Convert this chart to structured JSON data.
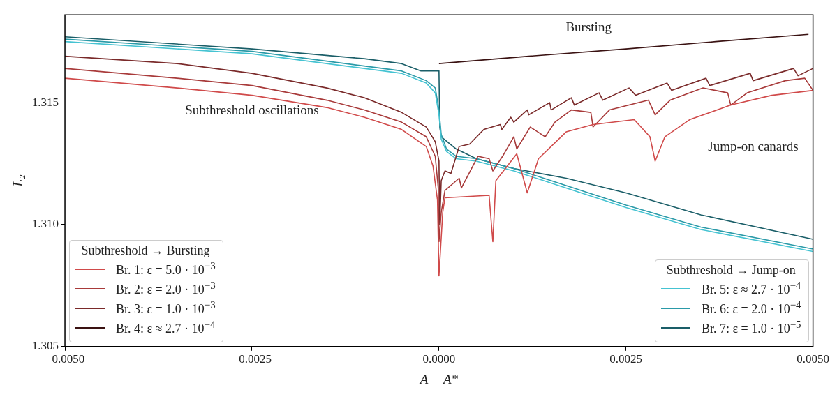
{
  "chart_data": {
    "type": "line",
    "xlabel": "A − A*",
    "ylabel": "L₂",
    "xlim": [
      -0.005,
      0.005
    ],
    "ylim": [
      1.305,
      1.3186
    ],
    "xticks": [
      {
        "value": -0.005,
        "label": "−0.0050"
      },
      {
        "value": -0.0025,
        "label": "−0.0025"
      },
      {
        "value": 0,
        "label": "0.0000"
      },
      {
        "value": 0.0025,
        "label": "0.0025"
      },
      {
        "value": 0.005,
        "label": "0.0050"
      }
    ],
    "yticks": [
      {
        "value": 1.305,
        "label": "1.305"
      },
      {
        "value": 1.31,
        "label": "1.310"
      },
      {
        "value": 1.315,
        "label": "1.315"
      }
    ],
    "grid": false,
    "legend": "bottom left",
    "legend_title": "Subthreshold → Bursting",
    "marker": "none",
    "line_style": "solid",
    "annotations": [
      "Bursting",
      "Subthreshold oscillations",
      "Jump-on canards",
      "Subthreshold → Jump-on"
    ],
    "series": [
      {
        "name": "Br. 1: ε = 5.0 · 10$^{−3}$",
        "color": "#d04a4a",
        "x": [
          -0.005,
          -0.0035,
          -0.0025,
          -0.0015,
          -0.001,
          -0.0005,
          -0.00017,
          -8e-05,
          -2e-05,
          0,
          5e-05,
          8e-05,
          0.00067,
          0.00072,
          0.00076,
          0.00104,
          0.00118,
          0.00133,
          0.0017,
          0.00206,
          0.00261,
          0.00282,
          0.00289,
          0.00302,
          0.00335,
          0.0039,
          0.00445,
          0.005
        ],
        "values": [
          1.316,
          1.3156,
          1.3153,
          1.3148,
          1.3144,
          1.3139,
          1.3132,
          1.3124,
          1.311,
          1.3079,
          1.3105,
          1.3111,
          1.3112,
          1.3093,
          1.3118,
          1.3129,
          1.3113,
          1.3127,
          1.3138,
          1.3141,
          1.3143,
          1.3136,
          1.3126,
          1.3136,
          1.3143,
          1.3149,
          1.3153,
          1.3155
        ]
      },
      {
        "name": "Br. 2: ε = 2.0 · 10$^{−3}$",
        "color": "#a83a3a",
        "x": [
          -0.005,
          -0.0035,
          -0.0025,
          -0.0015,
          -0.001,
          -0.0005,
          -0.00017,
          -5e-05,
          -1e-05,
          0,
          3e-05,
          8e-05,
          0.00027,
          0.0003,
          0.00052,
          0.00067,
          0.00072,
          0.00085,
          0.001,
          0.00104,
          0.00122,
          0.00142,
          0.00155,
          0.00177,
          0.00203,
          0.00206,
          0.00228,
          0.0028,
          0.00289,
          0.00309,
          0.00353,
          0.00386,
          0.0039,
          0.00412,
          0.00463,
          0.00489,
          0.005
        ],
        "values": [
          1.3164,
          1.316,
          1.3157,
          1.3151,
          1.3147,
          1.3142,
          1.3136,
          1.3128,
          1.3115,
          1.3093,
          1.3105,
          1.3114,
          1.3119,
          1.3115,
          1.3128,
          1.3127,
          1.3122,
          1.3128,
          1.3136,
          1.3131,
          1.314,
          1.3136,
          1.3142,
          1.3147,
          1.3146,
          1.314,
          1.3147,
          1.3151,
          1.3145,
          1.3151,
          1.3156,
          1.3154,
          1.3149,
          1.3154,
          1.3159,
          1.316,
          1.3155
        ]
      },
      {
        "name": "Br. 3: ε = 1.0 · 10$^{−3}$",
        "color": "#7a2a2a",
        "x": [
          -0.005,
          -0.0035,
          -0.0025,
          -0.0015,
          -0.001,
          -0.0005,
          -0.00017,
          -5e-05,
          0,
          1e-05,
          3e-05,
          8e-05,
          0.00016,
          0.00027,
          0.00041,
          0.0006,
          0.00082,
          0.00084,
          0.00096,
          0.001,
          0.00118,
          0.0012,
          0.00148,
          0.0015,
          0.00177,
          0.00181,
          0.00214,
          0.00219,
          0.00254,
          0.00263,
          0.00305,
          0.00311,
          0.00357,
          0.00362,
          0.00416,
          0.0042,
          0.00474,
          0.0048,
          0.005
        ],
        "values": [
          1.3169,
          1.3166,
          1.3162,
          1.3156,
          1.3152,
          1.3146,
          1.314,
          1.3134,
          1.3126,
          1.31,
          1.3118,
          1.3122,
          1.3121,
          1.3132,
          1.3133,
          1.3139,
          1.3141,
          1.3139,
          1.3144,
          1.3142,
          1.3147,
          1.3145,
          1.315,
          1.3147,
          1.3152,
          1.3149,
          1.3154,
          1.3151,
          1.3156,
          1.3153,
          1.3158,
          1.3155,
          1.316,
          1.3157,
          1.3162,
          1.3159,
          1.3164,
          1.3161,
          1.3164
        ]
      },
      {
        "name": "Br. 4: ε ≈ 2.7 · 10$^{−4}$",
        "color": "#3a1212",
        "x": [
          0,
          0.0012,
          0.0025,
          0.0037,
          0.00494
        ],
        "values": [
          1.3166,
          1.3169,
          1.3172,
          1.3175,
          1.3178
        ]
      },
      {
        "name": "Br. 5: ε ≈ 2.7 · 10$^{−4}$",
        "color": "#45c3d2",
        "x": [
          -0.005,
          -0.0025,
          -0.001,
          -0.0005,
          -0.00017,
          -5e-05,
          0,
          3e-05,
          0.0001,
          0.00023,
          0.0005,
          0.001,
          0.0017,
          0.0025,
          0.0035,
          0.005
        ],
        "values": [
          1.3175,
          1.317,
          1.3164,
          1.3162,
          1.3158,
          1.3154,
          1.3145,
          1.3135,
          1.313,
          1.3127,
          1.3126,
          1.3122,
          1.3115,
          1.3107,
          1.3098,
          1.3089
        ]
      },
      {
        "name": "Br. 6: ε = 2.0 · 10$^{−4}$",
        "color": "#2a9aa8",
        "x": [
          -0.005,
          -0.0025,
          -0.001,
          -0.0005,
          -0.00017,
          -5e-05,
          0,
          3e-05,
          0.0001,
          0.00023,
          0.0005,
          0.001,
          0.0017,
          0.0025,
          0.0035,
          0.005
        ],
        "values": [
          1.3176,
          1.3171,
          1.3165,
          1.3163,
          1.3159,
          1.3156,
          1.3147,
          1.3137,
          1.3131,
          1.3128,
          1.3127,
          1.3123,
          1.3116,
          1.3108,
          1.3099,
          1.309
        ]
      },
      {
        "name": "Br. 7: ε = 1.0 · 10$^{−5}$",
        "color": "#1a5e68",
        "x": [
          -0.005,
          -0.0025,
          -0.001,
          -0.0005,
          -0.00024,
          0,
          1e-05,
          3e-05,
          0.00023,
          0.0005,
          0.001,
          0.0017,
          0.0025,
          0.0035,
          0.005
        ],
        "values": [
          1.3177,
          1.3172,
          1.3168,
          1.3166,
          1.3163,
          1.3163,
          1.314,
          1.3136,
          1.3131,
          1.3127,
          1.3123,
          1.3119,
          1.3113,
          1.3104,
          1.3094
        ]
      }
    ]
  }
}
